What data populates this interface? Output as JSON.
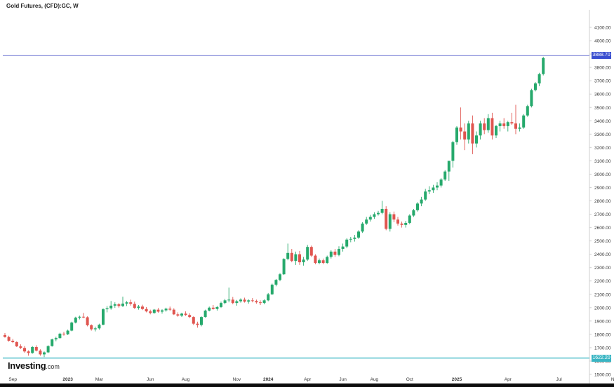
{
  "header": {
    "symbol_title": "Gold Futures, (CFD):GC, W"
  },
  "brand": {
    "main": "Investing",
    "suffix": ".com"
  },
  "price_tags": {
    "current": "3888.70",
    "low": "1622.20"
  },
  "colors": {
    "up": "#26a96c",
    "down": "#e0554f",
    "current_line": "#4a55c8",
    "low_line": "#3bb8c4",
    "current_tag_bg": "#3a4fd0",
    "low_tag_bg": "#39b5c3",
    "axis": "#cfcfcf",
    "tick_text": "#333333"
  },
  "chart_data": {
    "type": "candlestick",
    "title": "Gold Futures, (CFD):GC, W",
    "interval": "W",
    "ylim": [
      1500,
      4200
    ],
    "y_ticks": [
      1500,
      1600,
      1700,
      1800,
      1900,
      2000,
      2100,
      2200,
      2300,
      2400,
      2500,
      2600,
      2700,
      2800,
      2900,
      3000,
      3100,
      3200,
      3300,
      3400,
      3500,
      3600,
      3700,
      3800,
      3900,
      4000,
      4100
    ],
    "y_tick_labels": [
      "1500.00",
      "1600.00",
      "1700.00",
      "1800.00",
      "1900.00",
      "2000.00",
      "2100.00",
      "2200.00",
      "2300.00",
      "2400.00",
      "2500.00",
      "2600.00",
      "2700.00",
      "2800.00",
      "2900.00",
      "3000.00",
      "3100.00",
      "3200.00",
      "3300.00",
      "3400.00",
      "3500.00",
      "3600.00",
      "3700.00",
      "3800.00",
      "3900.00",
      "4000.00",
      "4100.00"
    ],
    "x_tick_labels": [
      {
        "label": "Sep",
        "bar": 2,
        "bold": false
      },
      {
        "label": "2023",
        "bar": 16,
        "bold": true
      },
      {
        "label": "Mar",
        "bar": 24,
        "bold": false
      },
      {
        "label": "Jun",
        "bar": 37,
        "bold": false
      },
      {
        "label": "Aug",
        "bar": 46,
        "bold": false
      },
      {
        "label": "Nov",
        "bar": 59,
        "bold": false
      },
      {
        "label": "2024",
        "bar": 67,
        "bold": true
      },
      {
        "label": "Apr",
        "bar": 77,
        "bold": false
      },
      {
        "label": "Jun",
        "bar": 86,
        "bold": false
      },
      {
        "label": "Aug",
        "bar": 94,
        "bold": false
      },
      {
        "label": "Oct",
        "bar": 103,
        "bold": false
      },
      {
        "label": "2025",
        "bar": 115,
        "bold": true
      },
      {
        "label": "Apr",
        "bar": 128,
        "bold": false
      },
      {
        "label": "Jul",
        "bar": 141,
        "bold": false
      },
      {
        "label": "No",
        "bar": 155,
        "bold": false
      }
    ],
    "horizontal_lines": [
      {
        "name": "current",
        "value": 3888.7
      },
      {
        "name": "low",
        "value": 1622.2
      }
    ],
    "candles": [
      [
        1795,
        1810,
        1775,
        1780
      ],
      [
        1780,
        1790,
        1745,
        1752
      ],
      [
        1752,
        1765,
        1735,
        1742
      ],
      [
        1742,
        1748,
        1705,
        1710
      ],
      [
        1710,
        1725,
        1690,
        1698
      ],
      [
        1698,
        1712,
        1662,
        1672
      ],
      [
        1672,
        1680,
        1640,
        1660
      ],
      [
        1660,
        1712,
        1655,
        1705
      ],
      [
        1705,
        1718,
        1672,
        1678
      ],
      [
        1678,
        1688,
        1640,
        1650
      ],
      [
        1650,
        1672,
        1630,
        1665
      ],
      [
        1665,
        1718,
        1660,
        1712
      ],
      [
        1712,
        1768,
        1708,
        1762
      ],
      [
        1762,
        1782,
        1748,
        1772
      ],
      [
        1772,
        1812,
        1768,
        1805
      ],
      [
        1805,
        1818,
        1790,
        1800
      ],
      [
        1800,
        1835,
        1795,
        1828
      ],
      [
        1828,
        1895,
        1823,
        1888
      ],
      [
        1888,
        1932,
        1882,
        1925
      ],
      [
        1925,
        1940,
        1912,
        1932
      ],
      [
        1932,
        1960,
        1920,
        1928
      ],
      [
        1928,
        1935,
        1860,
        1868
      ],
      [
        1868,
        1875,
        1828,
        1838
      ],
      [
        1838,
        1858,
        1822,
        1845
      ],
      [
        1845,
        1880,
        1835,
        1872
      ],
      [
        1872,
        1995,
        1868,
        1988
      ],
      [
        1988,
        2012,
        1965,
        1995
      ],
      [
        1995,
        2050,
        1985,
        2015
      ],
      [
        2015,
        2040,
        1998,
        2025
      ],
      [
        2025,
        2035,
        2000,
        2012
      ],
      [
        2012,
        2082,
        2005,
        2030
      ],
      [
        2030,
        2050,
        2012,
        2040
      ],
      [
        2040,
        2060,
        2015,
        2028
      ],
      [
        2028,
        2045,
        1990,
        1998
      ],
      [
        1998,
        2020,
        1985,
        2008
      ],
      [
        2008,
        2022,
        1982,
        1990
      ],
      [
        1990,
        2004,
        1965,
        1972
      ],
      [
        1972,
        1985,
        1950,
        1960
      ],
      [
        1960,
        1990,
        1955,
        1985
      ],
      [
        1985,
        1998,
        1962,
        1970
      ],
      [
        1970,
        1988,
        1955,
        1980
      ],
      [
        1980,
        2000,
        1970,
        1992
      ],
      [
        1992,
        2008,
        1975,
        1985
      ],
      [
        1985,
        1995,
        1945,
        1950
      ],
      [
        1950,
        1965,
        1932,
        1940
      ],
      [
        1940,
        1962,
        1930,
        1955
      ],
      [
        1955,
        1972,
        1938,
        1945
      ],
      [
        1945,
        1958,
        1922,
        1930
      ],
      [
        1930,
        1935,
        1870,
        1880
      ],
      [
        1880,
        1895,
        1850,
        1870
      ],
      [
        1870,
        1935,
        1860,
        1930
      ],
      [
        1930,
        1985,
        1925,
        1978
      ],
      [
        1978,
        2008,
        1972,
        2000
      ],
      [
        2000,
        2020,
        1985,
        1990
      ],
      [
        1990,
        2012,
        1978,
        2005
      ],
      [
        2005,
        2045,
        1998,
        2035
      ],
      [
        2035,
        2065,
        2025,
        2055
      ],
      [
        2055,
        2150,
        2040,
        2060
      ],
      [
        2060,
        2080,
        2025,
        2035
      ],
      [
        2035,
        2058,
        2015,
        2048
      ],
      [
        2048,
        2070,
        2038,
        2060
      ],
      [
        2060,
        2075,
        2038,
        2045
      ],
      [
        2045,
        2062,
        2030,
        2055
      ],
      [
        2055,
        2072,
        2040,
        2050
      ],
      [
        2050,
        2060,
        2030,
        2040
      ],
      [
        2040,
        2055,
        2020,
        2035
      ],
      [
        2035,
        2062,
        2025,
        2055
      ],
      [
        2055,
        2110,
        2048,
        2100
      ],
      [
        2100,
        2180,
        2095,
        2172
      ],
      [
        2172,
        2215,
        2160,
        2208
      ],
      [
        2208,
        2260,
        2198,
        2250
      ],
      [
        2250,
        2370,
        2245,
        2365
      ],
      [
        2365,
        2480,
        2355,
        2410
      ],
      [
        2410,
        2440,
        2340,
        2350
      ],
      [
        2350,
        2420,
        2320,
        2400
      ],
      [
        2400,
        2425,
        2320,
        2340
      ],
      [
        2340,
        2380,
        2315,
        2360
      ],
      [
        2360,
        2470,
        2350,
        2455
      ],
      [
        2455,
        2465,
        2380,
        2390
      ],
      [
        2390,
        2400,
        2325,
        2335
      ],
      [
        2335,
        2368,
        2325,
        2355
      ],
      [
        2355,
        2368,
        2325,
        2335
      ],
      [
        2335,
        2390,
        2328,
        2380
      ],
      [
        2380,
        2430,
        2368,
        2420
      ],
      [
        2420,
        2440,
        2380,
        2395
      ],
      [
        2395,
        2460,
        2385,
        2440
      ],
      [
        2440,
        2480,
        2420,
        2458
      ],
      [
        2458,
        2520,
        2445,
        2510
      ],
      [
        2510,
        2530,
        2490,
        2515
      ],
      [
        2515,
        2545,
        2495,
        2525
      ],
      [
        2525,
        2580,
        2515,
        2570
      ],
      [
        2570,
        2640,
        2560,
        2630
      ],
      [
        2630,
        2680,
        2620,
        2660
      ],
      [
        2660,
        2695,
        2645,
        2680
      ],
      [
        2680,
        2715,
        2665,
        2700
      ],
      [
        2700,
        2725,
        2690,
        2710
      ],
      [
        2710,
        2800,
        2700,
        2740
      ],
      [
        2740,
        2760,
        2580,
        2590
      ],
      [
        2590,
        2715,
        2570,
        2700
      ],
      [
        2700,
        2720,
        2640,
        2660
      ],
      [
        2660,
        2680,
        2615,
        2630
      ],
      [
        2630,
        2645,
        2600,
        2620
      ],
      [
        2620,
        2650,
        2600,
        2635
      ],
      [
        2635,
        2700,
        2625,
        2690
      ],
      [
        2690,
        2740,
        2680,
        2730
      ],
      [
        2730,
        2790,
        2720,
        2780
      ],
      [
        2780,
        2830,
        2760,
        2810
      ],
      [
        2810,
        2890,
        2800,
        2870
      ],
      [
        2870,
        2910,
        2850,
        2880
      ],
      [
        2880,
        2920,
        2860,
        2900
      ],
      [
        2900,
        2940,
        2880,
        2915
      ],
      [
        2915,
        2970,
        2900,
        2960
      ],
      [
        2960,
        3030,
        2950,
        3020
      ],
      [
        3020,
        3090,
        2950,
        3100
      ],
      [
        3100,
        3250,
        3050,
        3240
      ],
      [
        3240,
        3360,
        3220,
        3350
      ],
      [
        3350,
        3500,
        3260,
        3320
      ],
      [
        3320,
        3380,
        3180,
        3260
      ],
      [
        3260,
        3400,
        3230,
        3380
      ],
      [
        3380,
        3440,
        3150,
        3230
      ],
      [
        3230,
        3320,
        3200,
        3290
      ],
      [
        3290,
        3400,
        3260,
        3380
      ],
      [
        3380,
        3420,
        3300,
        3330
      ],
      [
        3330,
        3450,
        3310,
        3420
      ],
      [
        3420,
        3460,
        3260,
        3290
      ],
      [
        3290,
        3370,
        3270,
        3360
      ],
      [
        3360,
        3400,
        3320,
        3380
      ],
      [
        3380,
        3420,
        3340,
        3360
      ],
      [
        3360,
        3400,
        3320,
        3390
      ],
      [
        3390,
        3460,
        3370,
        3380
      ],
      [
        3380,
        3520,
        3300,
        3340
      ],
      [
        3340,
        3380,
        3320,
        3350
      ],
      [
        3350,
        3450,
        3340,
        3440
      ],
      [
        3440,
        3520,
        3430,
        3510
      ],
      [
        3510,
        3640,
        3500,
        3630
      ],
      [
        3630,
        3690,
        3620,
        3680
      ],
      [
        3680,
        3760,
        3660,
        3750
      ],
      [
        3750,
        3880,
        3740,
        3870
      ]
    ]
  }
}
